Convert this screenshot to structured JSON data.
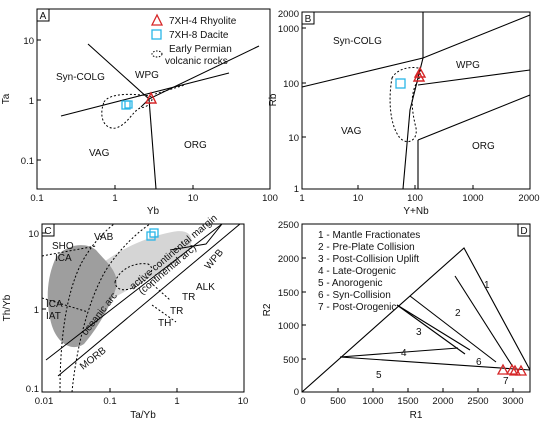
{
  "colors": {
    "rhyolite": "#d62728",
    "dacite": "#29b6e8",
    "field_dark": "#9e9e9e",
    "field_light": "#d5d5d5"
  },
  "panel_a": {
    "letter": "A",
    "xlabel": "Yb",
    "ylabel": "Ta",
    "xticks": [
      "0.1",
      "1",
      "10",
      "100"
    ],
    "yticks": [
      "10",
      "1",
      "0.1"
    ],
    "fields": {
      "syn_colg": "Syn-COLG",
      "wpg": "WPG",
      "vag": "VAG",
      "org": "ORG"
    },
    "legend": {
      "rhyolite": "7XH-4  Rhyolite",
      "dacite": "7XH-8  Dacite",
      "permian_line1": "Early Permian",
      "permian_line2": "volcanic rocks"
    }
  },
  "panel_b": {
    "letter": "B",
    "xlabel": "Y+Nb",
    "ylabel": "Rb",
    "xticks": [
      "1",
      "10",
      "100",
      "1000",
      "2000"
    ],
    "yticks": [
      "2000",
      "1000",
      "100",
      "10",
      "1"
    ],
    "fields": {
      "syn_colg": "Syn-COLG",
      "wpg": "WPG",
      "vag": "VAG",
      "org": "ORG"
    }
  },
  "panel_c": {
    "letter": "C",
    "xlabel": "Ta/Yb",
    "ylabel": "Th/Yb",
    "xticks": [
      "0.01",
      "0.1",
      "1",
      "10"
    ],
    "yticks": [
      "10",
      "1",
      "0.1"
    ],
    "fields": {
      "sho": "SHO",
      "ica_top": "ICA",
      "vab": "VAB",
      "ica": "ICA",
      "iat": "IAT",
      "oceanic_arc": "oceanic arc",
      "acm1": "active continental margin",
      "acm2": "(continental arc)",
      "wpb": "WPB",
      "alk": "ALK",
      "tr1": "TR",
      "tr2": "TR",
      "th": "TH",
      "morb": "MORB"
    }
  },
  "panel_d": {
    "letter": "D",
    "xlabel": "R1",
    "ylabel": "R2",
    "xticks": [
      "0",
      "500",
      "1000",
      "1500",
      "2000",
      "2500",
      "3000"
    ],
    "yticks": [
      "2500",
      "2000",
      "1500",
      "1000",
      "500",
      "0"
    ],
    "fields": {
      "n1": "1",
      "n2": "2",
      "n3": "3",
      "n4": "4",
      "n5": "5",
      "n6": "6",
      "n7": "7"
    },
    "legend": [
      "1 - Mantle Fractionates",
      "2 - Pre-Plate Collision",
      "3 - Post-Collision Uplift",
      "4 - Late-Orogenic",
      "5 - Anorogenic",
      "6 - Syn-Collision",
      "7 - Post-Orogenic"
    ]
  }
}
